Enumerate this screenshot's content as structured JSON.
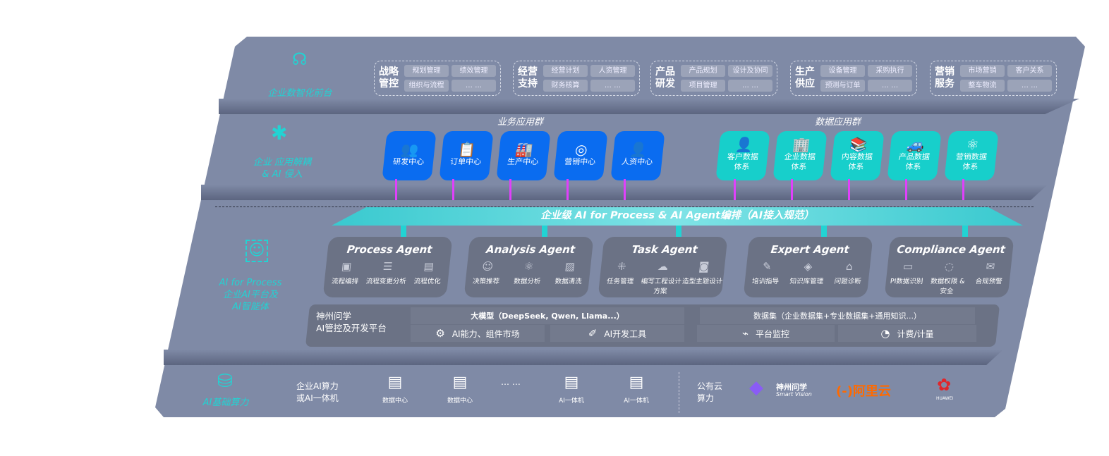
{
  "layers": {
    "front": "企业数智化前台",
    "apps": [
      "企业 应用解耦",
      "& AI 侵入"
    ],
    "ai": [
      "AI for Process",
      "企业AI平台及",
      "AI智能体"
    ],
    "infra": "AI基础算力"
  },
  "groups": [
    {
      "title": [
        "战略",
        "管控"
      ],
      "items": [
        "规划管理",
        "绩效管理",
        "组织与流程",
        "… …"
      ]
    },
    {
      "title": [
        "经营",
        "支持"
      ],
      "items": [
        "经营计划",
        "人资管理",
        "财务核算",
        "… …"
      ]
    },
    {
      "title": [
        "产品",
        "研发"
      ],
      "items": [
        "产品规划",
        "设计及协同",
        "项目管理",
        "… …"
      ]
    },
    {
      "title": [
        "生产",
        "供应"
      ],
      "items": [
        "设备管理",
        "采购执行",
        "预测与订单",
        "… …"
      ]
    },
    {
      "title": [
        "营销",
        "服务"
      ],
      "items": [
        "市场营销",
        "客户关系",
        "整车物流",
        "… …"
      ]
    }
  ],
  "business_apps": {
    "title": "业务应用群",
    "items": [
      {
        "label": "研发中心",
        "icon": "👥"
      },
      {
        "label": "订单中心",
        "icon": "📋"
      },
      {
        "label": "生产中心",
        "icon": "🏭"
      },
      {
        "label": "营销中心",
        "icon": "◎"
      },
      {
        "label": "人资中心",
        "icon": "👤"
      }
    ]
  },
  "data_apps": {
    "title": "数据应用群",
    "items": [
      {
        "label": "客户数据\n体系",
        "icon": "👤"
      },
      {
        "label": "企业数据\n体系",
        "icon": "🏢"
      },
      {
        "label": "内容数据\n体系",
        "icon": "📚"
      },
      {
        "label": "产品数据\n体系",
        "icon": "🚙"
      },
      {
        "label": "营销数据\n体系",
        "icon": "⚛"
      }
    ]
  },
  "orchestration": "企业级 AI for Process & AI Agent编排（AI接入规范）",
  "agents": [
    {
      "title": "Process Agent",
      "items": [
        {
          "l": "流程编排",
          "i": "▣"
        },
        {
          "l": "流程变更分析",
          "i": "☰"
        },
        {
          "l": "流程优化",
          "i": "▤"
        }
      ]
    },
    {
      "title": "Analysis Agent",
      "items": [
        {
          "l": "决策推荐",
          "i": "☺"
        },
        {
          "l": "数据分析",
          "i": "⚛"
        },
        {
          "l": "数据清洗",
          "i": "▨"
        }
      ]
    },
    {
      "title": "Task Agent",
      "items": [
        {
          "l": "任务管理",
          "i": "⁜"
        },
        {
          "l": "编写工程设计方案",
          "i": "☁"
        },
        {
          "l": "造型主题设计",
          "i": "◙"
        }
      ]
    },
    {
      "title": "Expert Agent",
      "items": [
        {
          "l": "培训指导",
          "i": "✎"
        },
        {
          "l": "知识库管理",
          "i": "◈"
        },
        {
          "l": "问题诊断",
          "i": "⌂"
        }
      ]
    },
    {
      "title": "Compliance Agent",
      "items": [
        {
          "l": "PI数据识别",
          "i": "▭"
        },
        {
          "l": "数据权限 & 安全",
          "i": "◌"
        },
        {
          "l": "合规预警",
          "i": "✉"
        }
      ]
    }
  ],
  "platform": {
    "name": [
      "神州问学",
      "AI管控及开发平台"
    ],
    "llm": "大模型（DeepSeek, Qwen, Llama...）",
    "dataset": "数据集（企业数据集+专业数据集+通用知识...）",
    "cells": [
      {
        "l": "AI能力、组件市场",
        "i": "⚙"
      },
      {
        "l": "AI开发工具",
        "i": "✐"
      },
      {
        "l": "平台监控",
        "i": "⌁"
      },
      {
        "l": "计费/计量",
        "i": "◔"
      }
    ]
  },
  "infra": {
    "label": [
      "企业AI算力",
      "或AI一体机"
    ],
    "items": [
      "数据中心",
      "数据中心",
      "AI一体机",
      "AI一体机"
    ],
    "ellipsis": "… …",
    "cloud": [
      "公有云",
      "算力"
    ],
    "vendors": {
      "smartvision": "神州问学",
      "smartvision_sub": "Smart Vision",
      "aliyun": "阿里云",
      "huawei": "HUAWEI"
    }
  },
  "colors": {
    "panel": "#7f8aa6",
    "blue": "#0a6cf0",
    "teal": "#17cfcb",
    "cyan": "#22d3d3",
    "magenta": "#e040fb",
    "aliyun": "#ff6a00",
    "huawei": "#e0262b"
  }
}
